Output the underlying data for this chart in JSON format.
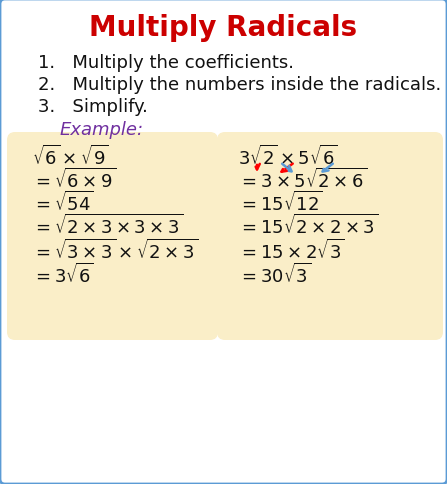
{
  "title": "Multiply Radicals",
  "title_color": "#cc0000",
  "title_fontsize": 20,
  "bg_color": "#ffffff",
  "border_color": "#5b9bd5",
  "box_color": "#faeec8",
  "step1": "1.   Multiply the coefficients.",
  "step2": "2.   Multiply the numbers inside the radicals.",
  "step3": "3.   Simplify.",
  "example_label": "Example:",
  "example_color": "#7030a0",
  "left_lines": [
    "$\\sqrt{6}\\times\\sqrt{9}$",
    "$=\\sqrt{6\\times9}$",
    "$=\\sqrt{54}$",
    "$=\\sqrt{2\\times3\\times3\\times3}$",
    "$=\\sqrt{3\\times3}\\times\\sqrt{2\\times3}$",
    "$=3\\sqrt{6}$"
  ],
  "right_lines": [
    "$3\\sqrt{2}\\times5\\sqrt{6}$",
    "$=3\\times5\\sqrt{2\\times6}$",
    "$=15\\sqrt{12}$",
    "$=15\\sqrt{2\\times2\\times3}$",
    "$=15\\times2\\sqrt{3}$",
    "$=30\\sqrt{3}$"
  ],
  "math_fontsize": 13,
  "steps_fontsize": 13
}
